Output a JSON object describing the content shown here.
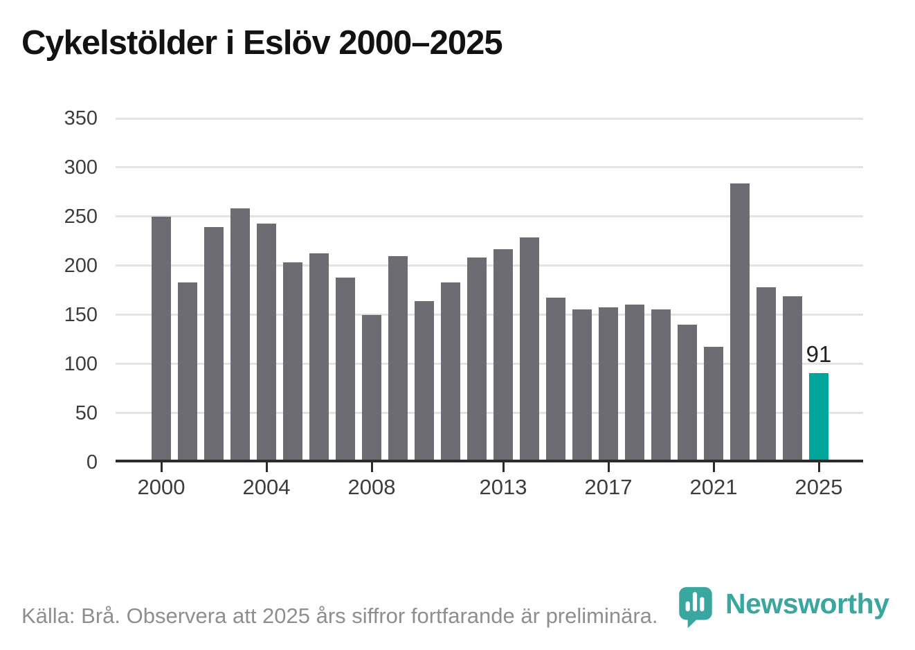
{
  "title": "Cykelstölder i Eslöv 2000–2025",
  "footer": {
    "source_note": "Källa: Brå. Observera att 2025 års siffror fortfarande är preliminära."
  },
  "branding": {
    "wordmark": "Newsworthy",
    "logo_icon": "newsworthy-speech-bubble-bar-chart-icon"
  },
  "colors": {
    "bar_default": "#6d6c72",
    "bar_highlight": "#00a59b",
    "logo_teal": "#3aa6a0",
    "gridline": "#e3e3e3",
    "axis": "#2b2b2b",
    "title_text": "#121212",
    "tick_text": "#3d3d3d",
    "footer_text": "#8e8e8e",
    "data_label": "#1f1f1f"
  },
  "chart_data": {
    "type": "bar",
    "title": "Cykelstölder i Eslöv 2000–2025",
    "xlabel": "",
    "ylabel": "",
    "x": [
      2000,
      2001,
      2002,
      2003,
      2004,
      2005,
      2006,
      2007,
      2008,
      2009,
      2010,
      2011,
      2012,
      2013,
      2014,
      2015,
      2016,
      2017,
      2018,
      2019,
      2020,
      2021,
      2022,
      2023,
      2024,
      2025
    ],
    "values": [
      250,
      183,
      240,
      259,
      243,
      204,
      213,
      188,
      150,
      210,
      164,
      183,
      209,
      217,
      229,
      168,
      156,
      158,
      161,
      156,
      140,
      118,
      284,
      178,
      169,
      91
    ],
    "highlight_x": 2025,
    "data_labels": [
      {
        "x": 2025,
        "label": "91"
      }
    ],
    "ylim": [
      0,
      350
    ],
    "yticks": [
      0,
      50,
      100,
      150,
      200,
      250,
      300,
      350
    ],
    "xticks": [
      2000,
      2004,
      2008,
      2013,
      2017,
      2021,
      2025
    ],
    "grid": "horizontal",
    "legend": "none"
  }
}
